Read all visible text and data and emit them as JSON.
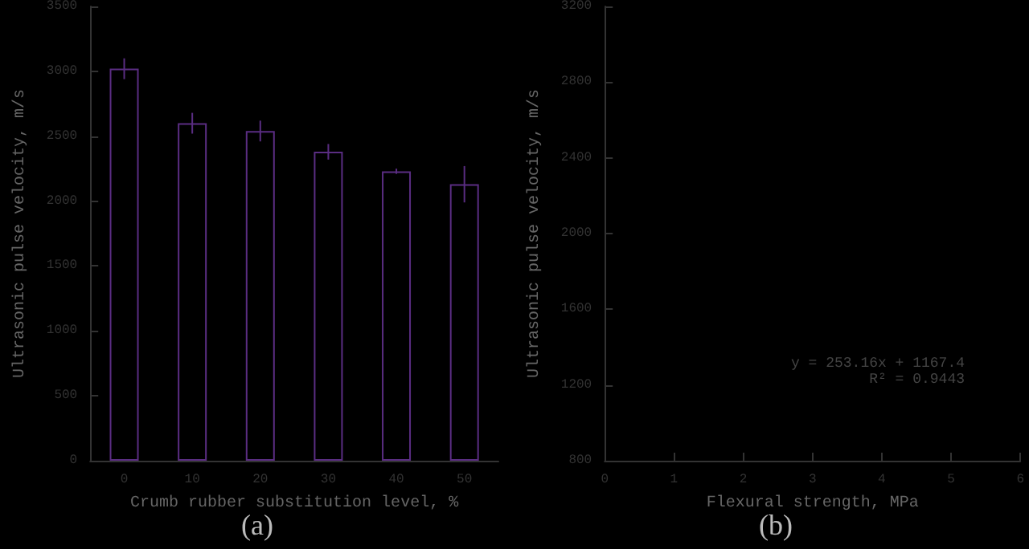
{
  "chart_data": [
    {
      "type": "bar",
      "categories": [
        "0",
        "10",
        "20",
        "30",
        "40",
        "50"
      ],
      "xlabel": "Crumb rubber substitution level, %",
      "ylabel": "Ultrasonic pulse velocity, m/s",
      "series": [
        {
          "color": "#5a2d82",
          "values": [
            3020,
            2600,
            2540,
            2380,
            2230,
            2130
          ],
          "errors": [
            80,
            80,
            80,
            60,
            20,
            140
          ]
        }
      ],
      "ylim": [
        0,
        3500
      ],
      "yticks": [
        0,
        500,
        1000,
        1500,
        2000,
        2500,
        3000,
        3500
      ],
      "grid": false,
      "annotations": [
        "(a)"
      ]
    },
    {
      "type": "scatter",
      "xlabel": "Flexural strength, MPa",
      "ylabel": "Ultrasonic pulse velocity, m/s",
      "xlim": [
        0,
        6
      ],
      "xticks": [
        0,
        1,
        2,
        3,
        4,
        5,
        6
      ],
      "ylim": [
        800,
        3200
      ],
      "yticks": [
        800,
        1200,
        1600,
        2000,
        2400,
        2800,
        3200
      ],
      "grid": false,
      "annotations": [
        "y = 253.16x + 1167.4",
        "R² = 0.9443",
        "(b)"
      ]
    }
  ]
}
